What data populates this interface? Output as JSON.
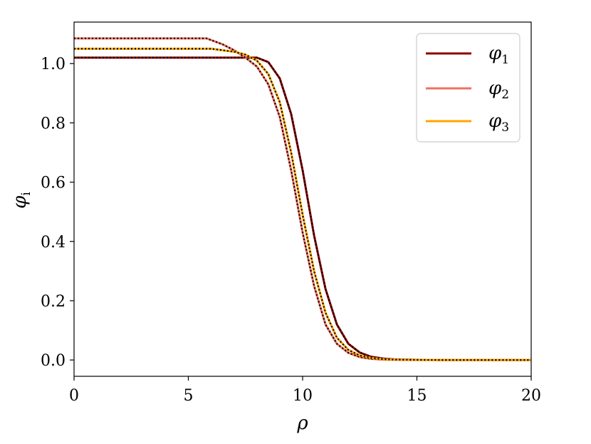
{
  "chart_data": {
    "type": "line",
    "xlabel": "ρ",
    "ylabel": "φ",
    "ylabel_sub": "i",
    "xlim": [
      0,
      20
    ],
    "ylim": [
      -0.055,
      1.14
    ],
    "x_ticks": [
      0,
      5,
      10,
      15,
      20
    ],
    "y_ticks": [
      0.0,
      0.2,
      0.4,
      0.6,
      0.8,
      1.0
    ],
    "x_tick_labels": [
      "0",
      "5",
      "10",
      "15",
      "20"
    ],
    "y_tick_labels": [
      "0.0",
      "0.2",
      "0.4",
      "0.6",
      "0.8",
      "1.0"
    ],
    "grid": false,
    "legend_position": "top-right",
    "series": [
      {
        "name": "φ",
        "name_sub": "1",
        "color": "#8b0000",
        "x": [
          0,
          2,
          4,
          6,
          7,
          7.5,
          8,
          8.5,
          9,
          9.5,
          10,
          10.5,
          11,
          11.5,
          12,
          12.5,
          13,
          13.5,
          14,
          15,
          16,
          17,
          18,
          20
        ],
        "y": [
          1.02,
          1.02,
          1.02,
          1.02,
          1.02,
          1.02,
          1.02,
          1.005,
          0.95,
          0.83,
          0.64,
          0.42,
          0.24,
          0.12,
          0.055,
          0.025,
          0.011,
          0.005,
          0.002,
          0.0005,
          0.0001,
          0,
          0,
          0
        ]
      },
      {
        "name": "φ",
        "name_sub": "2",
        "color": "#f07060",
        "x": [
          0,
          2,
          4,
          5.8,
          6.5,
          7,
          7.5,
          8,
          8.5,
          9,
          9.5,
          10,
          10.5,
          11,
          11.5,
          12,
          12.5,
          13,
          13.5,
          14,
          15,
          16,
          17,
          18,
          20
        ],
        "y": [
          1.085,
          1.085,
          1.085,
          1.085,
          1.065,
          1.045,
          1.02,
          0.99,
          0.93,
          0.82,
          0.64,
          0.43,
          0.25,
          0.12,
          0.055,
          0.024,
          0.01,
          0.004,
          0.0015,
          0.0005,
          0.0001,
          0,
          0,
          0,
          0
        ]
      },
      {
        "name": "φ",
        "name_sub": "3",
        "color": "#ffa500",
        "x": [
          0,
          2,
          4,
          6,
          6.5,
          7,
          7.5,
          8,
          8.5,
          9,
          9.5,
          10,
          10.5,
          11,
          11.5,
          12,
          12.5,
          13,
          13.5,
          14,
          15,
          16,
          17,
          18,
          20
        ],
        "y": [
          1.05,
          1.05,
          1.05,
          1.05,
          1.045,
          1.04,
          1.03,
          1.01,
          0.965,
          0.87,
          0.7,
          0.49,
          0.3,
          0.16,
          0.075,
          0.034,
          0.015,
          0.0065,
          0.0028,
          0.0012,
          0.0002,
          0,
          0,
          0,
          0
        ]
      }
    ]
  }
}
